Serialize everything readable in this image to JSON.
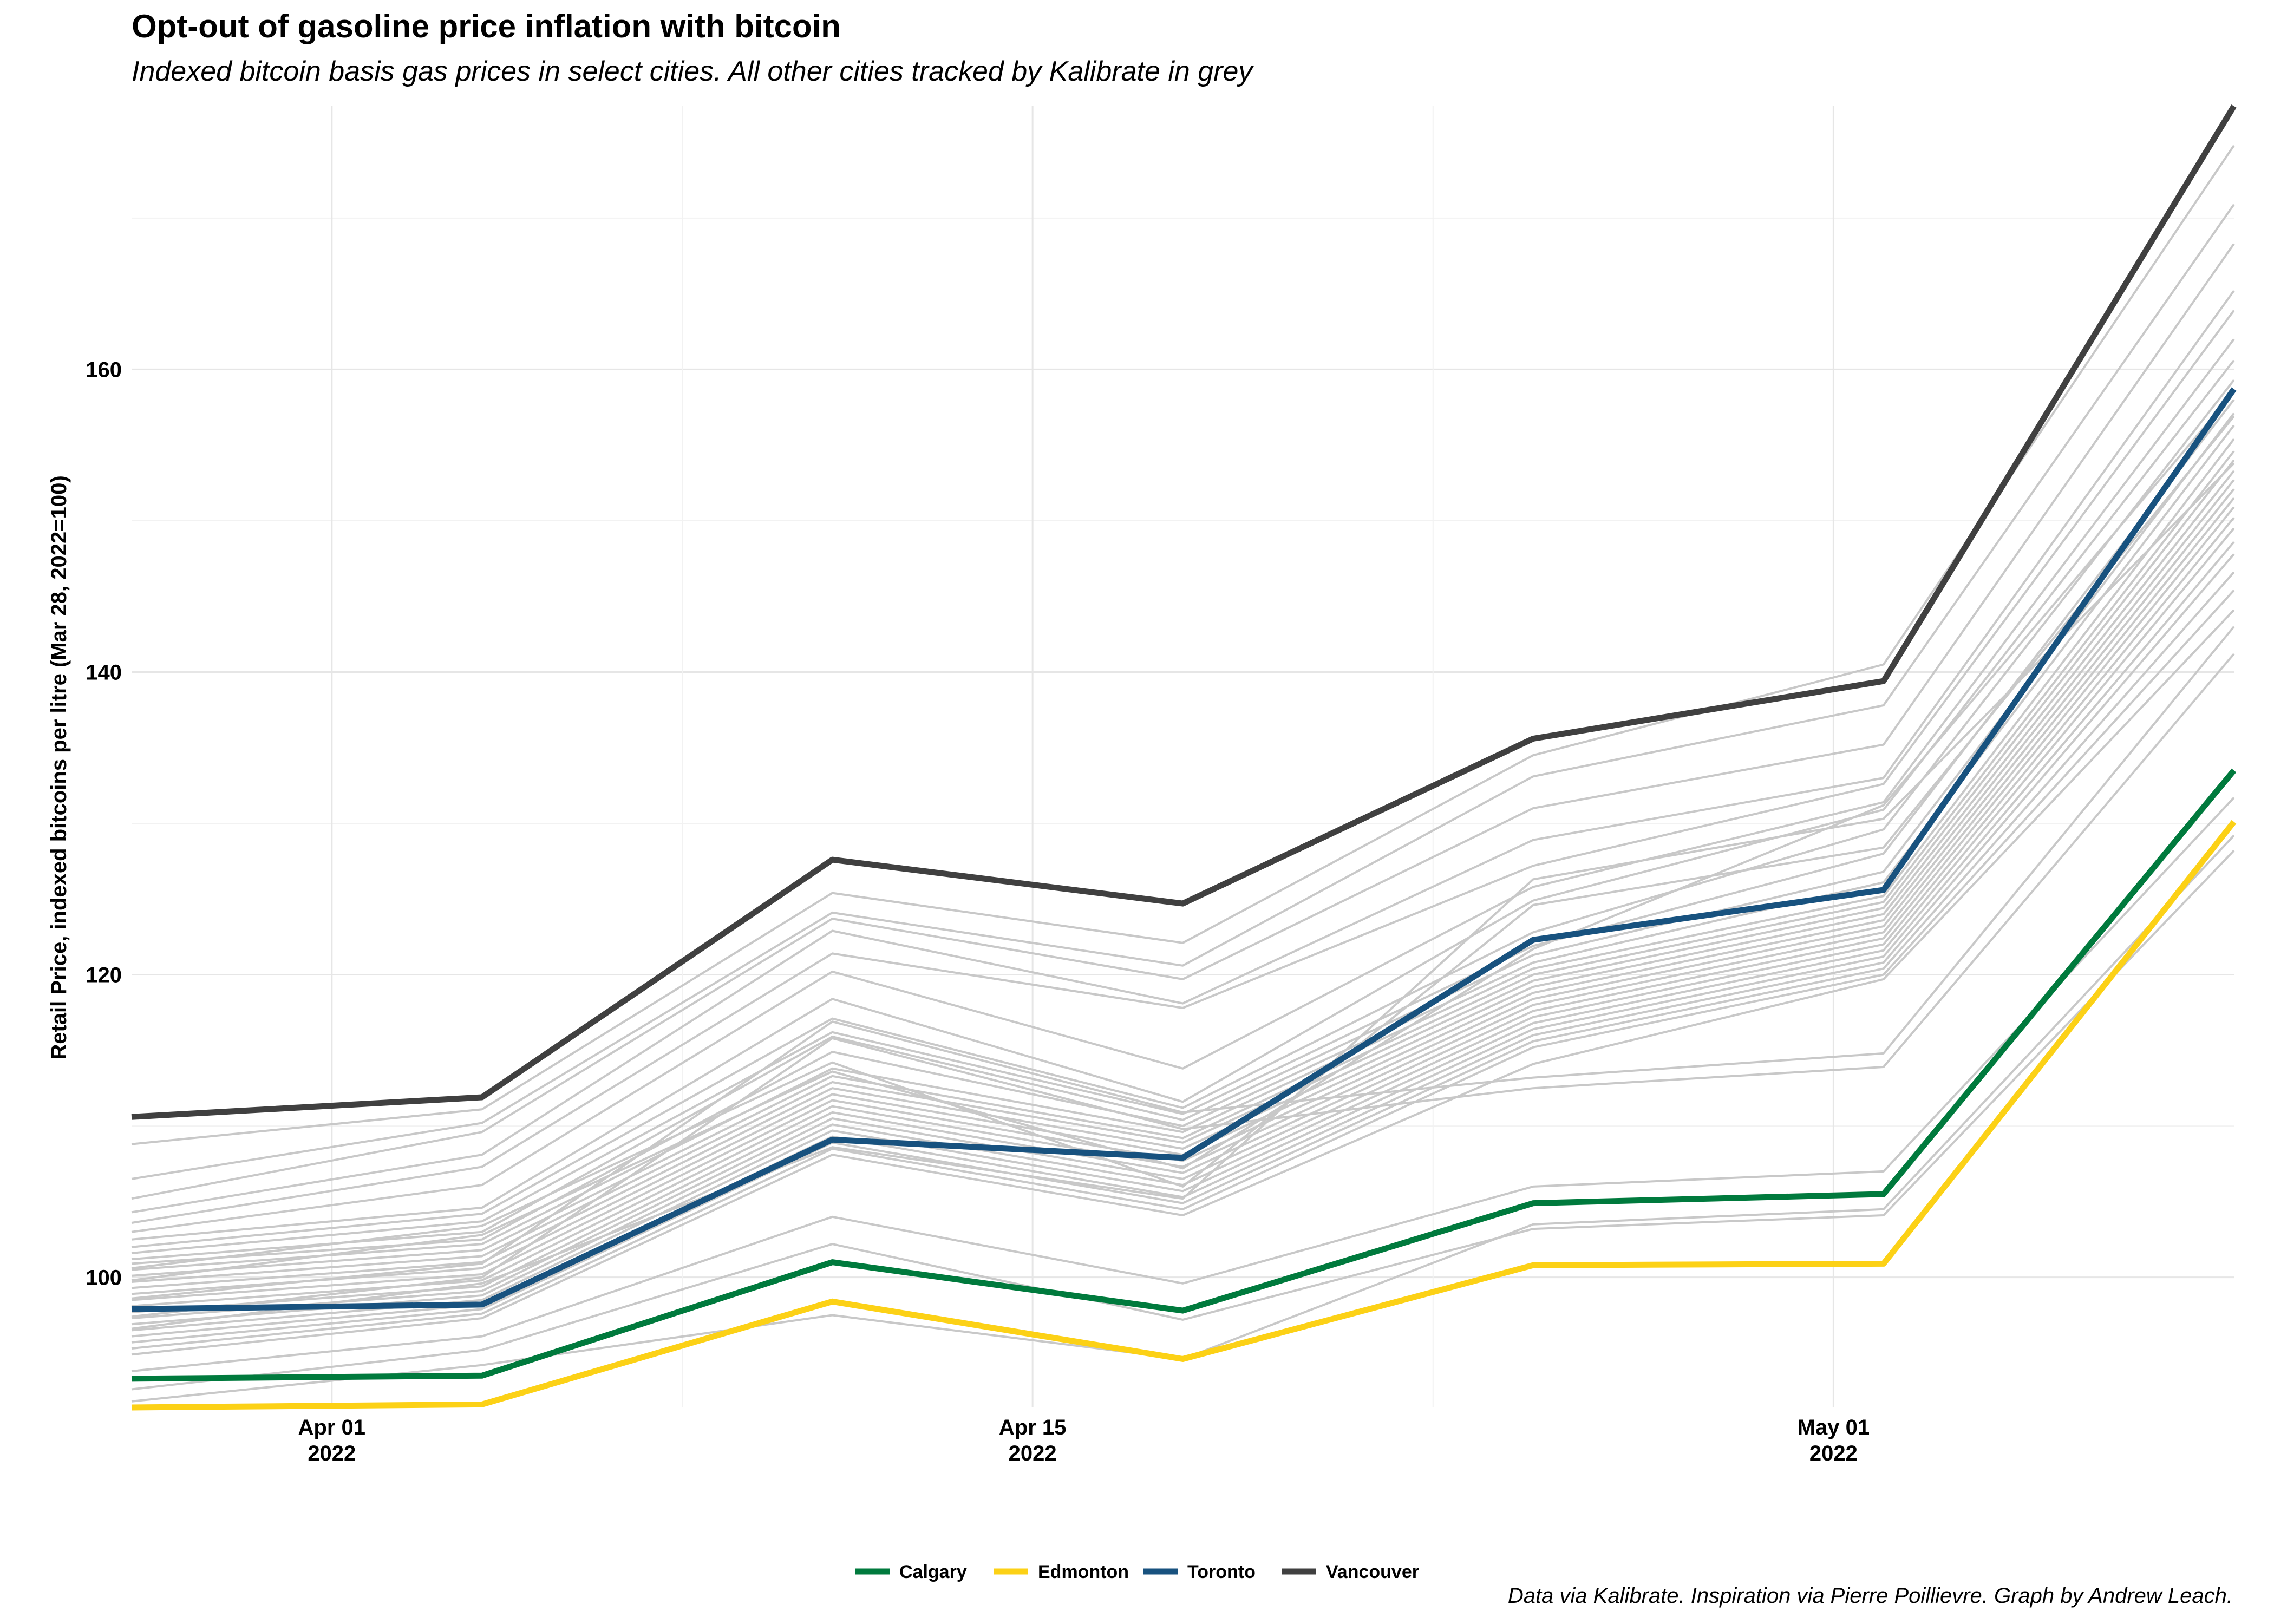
{
  "chart_data": {
    "type": "line",
    "title": "Opt-out of gasoline price inflation with bitcoin",
    "subtitle": "Indexed bitcoin basis gas prices in select cities. All other cities tracked by Kalibrate in grey",
    "caption": "Data via Kalibrate. Inspiration via Pierre Poillievre. Graph by Andrew Leach.",
    "xlabel": "",
    "ylabel": "Retail Price, indexed bitcoins per litre (Mar 28, 2022=100)",
    "x": [
      "2022-03-28",
      "2022-04-04",
      "2022-04-11",
      "2022-04-18",
      "2022-04-25",
      "2022-05-02",
      "2022-05-09"
    ],
    "xlim": [
      "2022-03-28",
      "2022-05-09"
    ],
    "ylim": [
      91.4,
      177.4
    ],
    "x_ticks": [
      {
        "date": "2022-04-01",
        "label": "Apr 01",
        "sublabel": "2022"
      },
      {
        "date": "2022-04-15",
        "label": "Apr 15",
        "sublabel": "2022"
      },
      {
        "date": "2022-05-01",
        "label": "May 01",
        "sublabel": "2022"
      }
    ],
    "y_ticks": [
      100,
      120,
      140,
      160
    ],
    "grid": true,
    "legend_position": "bottom",
    "series": [
      {
        "name": "Calgary",
        "color": "#007a3d",
        "values": [
          93.3,
          93.5,
          101.0,
          97.8,
          104.9,
          105.5,
          133.5
        ]
      },
      {
        "name": "Edmonton",
        "color": "#fcd116",
        "values": [
          91.4,
          91.6,
          98.4,
          94.6,
          100.8,
          100.9,
          130.1
        ]
      },
      {
        "name": "Toronto",
        "color": "#18527f",
        "values": [
          97.9,
          98.2,
          109.1,
          107.9,
          122.3,
          125.6,
          158.7
        ]
      },
      {
        "name": "Vancouver",
        "color": "#404040",
        "values": [
          110.6,
          111.9,
          127.6,
          124.7,
          135.6,
          139.4,
          177.4
        ]
      }
    ],
    "other_series_color": "#c8c8c8",
    "other_series": [
      [
        108.8,
        111.1,
        125.4,
        122.1,
        134.5,
        140.5,
        174.8
      ],
      [
        106.5,
        110.2,
        124.1,
        120.6,
        133.1,
        137.8,
        170.9
      ],
      [
        105.2,
        109.6,
        123.7,
        119.7,
        131.0,
        135.2,
        168.3
      ],
      [
        104.3,
        108.1,
        122.9,
        118.1,
        128.9,
        133.0,
        165.2
      ],
      [
        103.6,
        107.3,
        121.4,
        117.8,
        127.2,
        132.6,
        163.9
      ],
      [
        103.0,
        106.1,
        120.2,
        113.8,
        125.8,
        131.4,
        162.0
      ],
      [
        102.5,
        104.6,
        118.4,
        111.6,
        124.9,
        130.9,
        160.6
      ],
      [
        102.0,
        104.2,
        117.1,
        111.2,
        122.8,
        129.6,
        159.3
      ],
      [
        101.6,
        103.7,
        116.2,
        110.8,
        121.9,
        128.0,
        158.0
      ],
      [
        101.2,
        103.0,
        115.9,
        110.4,
        121.3,
        126.8,
        157.1
      ],
      [
        100.9,
        102.5,
        114.9,
        110.0,
        120.8,
        126.1,
        156.3
      ],
      [
        100.5,
        102.2,
        113.8,
        109.6,
        120.4,
        125.2,
        155.4
      ],
      [
        100.1,
        101.8,
        113.3,
        109.2,
        120.0,
        124.8,
        154.6
      ],
      [
        99.7,
        101.4,
        112.9,
        108.9,
        119.6,
        124.4,
        154.0
      ],
      [
        99.3,
        101.0,
        112.5,
        108.5,
        119.2,
        124.0,
        153.3
      ],
      [
        98.9,
        100.6,
        112.1,
        108.1,
        118.8,
        123.6,
        152.7
      ],
      [
        98.5,
        100.2,
        111.7,
        107.7,
        118.4,
        123.2,
        152.1
      ],
      [
        98.1,
        99.8,
        111.3,
        107.3,
        118.0,
        122.8,
        151.5
      ],
      [
        97.7,
        99.4,
        110.9,
        106.9,
        117.6,
        122.4,
        150.9
      ],
      [
        97.3,
        99.1,
        110.5,
        106.5,
        117.2,
        122.0,
        150.2
      ],
      [
        96.9,
        98.8,
        110.1,
        106.1,
        116.8,
        121.6,
        149.5
      ],
      [
        96.5,
        98.5,
        109.7,
        105.7,
        116.4,
        121.2,
        148.6
      ],
      [
        96.1,
        98.2,
        109.3,
        105.3,
        116.0,
        120.8,
        147.8
      ],
      [
        95.7,
        97.9,
        108.9,
        104.9,
        115.6,
        120.4,
        146.6
      ],
      [
        95.3,
        97.6,
        108.5,
        104.5,
        115.2,
        120.0,
        145.4
      ],
      [
        94.9,
        97.3,
        108.1,
        104.1,
        114.1,
        119.7,
        144.1
      ],
      [
        98.6,
        100.9,
        116.9,
        110.9,
        113.2,
        114.8,
        143.0
      ],
      [
        97.4,
        100.0,
        115.8,
        109.8,
        112.5,
        113.9,
        141.2
      ],
      [
        99.8,
        102.8,
        113.6,
        107.2,
        121.7,
        131.2,
        158.5
      ],
      [
        100.6,
        103.4,
        114.2,
        106.0,
        124.6,
        128.4,
        156.9
      ],
      [
        96.6,
        99.6,
        108.6,
        105.2,
        126.3,
        130.3,
        153.8
      ],
      [
        93.8,
        96.1,
        104.0,
        99.6,
        106.0,
        107.0,
        131.7
      ],
      [
        92.6,
        95.2,
        102.2,
        97.2,
        103.2,
        104.1,
        128.2
      ],
      [
        91.8,
        94.2,
        97.5,
        94.6,
        103.5,
        104.5,
        129.2
      ]
    ]
  }
}
